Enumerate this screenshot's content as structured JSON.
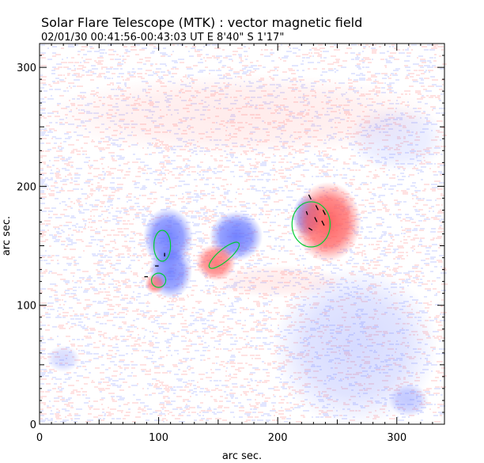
{
  "header": {
    "title": "Solar Flare Telescope (MTK) : vector magnetic field",
    "obs_info": "02/01/30   00:41:56-00:43:03 UT     E 8'40\"   S 1'17\""
  },
  "chart_data": {
    "type": "heatmap",
    "title": "Solar Flare Telescope (MTK) : vector magnetic field",
    "xlabel": "arc sec.",
    "ylabel": "arc sec.",
    "xlim": [
      0,
      340
    ],
    "ylim": [
      0,
      320
    ],
    "x_ticks": [
      0,
      100,
      200,
      300
    ],
    "y_ticks": [
      0,
      100,
      200,
      300
    ],
    "grid": false,
    "colors": {
      "positive_polarity": "#ff5a5a",
      "negative_polarity": "#5a6cff",
      "contour": "#00cc33",
      "vectors": "#000000",
      "frame": "#000000"
    },
    "regions": [
      {
        "polarity": "negative",
        "x": 108,
        "y": 157,
        "rx": 15,
        "ry": 18,
        "strength": 0.85
      },
      {
        "polarity": "negative",
        "x": 110,
        "y": 128,
        "rx": 13,
        "ry": 16,
        "strength": 0.8
      },
      {
        "polarity": "positive",
        "x": 97,
        "y": 118,
        "rx": 6,
        "ry": 6,
        "strength": 0.7
      },
      {
        "polarity": "negative",
        "x": 165,
        "y": 158,
        "rx": 16,
        "ry": 15,
        "strength": 0.85
      },
      {
        "polarity": "positive",
        "x": 148,
        "y": 136,
        "rx": 12,
        "ry": 11,
        "strength": 0.8
      },
      {
        "polarity": "negative",
        "x": 225,
        "y": 175,
        "rx": 9,
        "ry": 13,
        "strength": 0.75
      },
      {
        "polarity": "positive",
        "x": 242,
        "y": 170,
        "rx": 20,
        "ry": 24,
        "strength": 0.95
      },
      {
        "polarity": "negative",
        "x": 265,
        "y": 65,
        "rx": 50,
        "ry": 48,
        "strength": 0.25
      },
      {
        "polarity": "negative",
        "x": 310,
        "y": 20,
        "rx": 12,
        "ry": 10,
        "strength": 0.35
      },
      {
        "polarity": "negative",
        "x": 300,
        "y": 240,
        "rx": 30,
        "ry": 20,
        "strength": 0.15
      },
      {
        "polarity": "negative",
        "x": 20,
        "y": 55,
        "rx": 10,
        "ry": 8,
        "strength": 0.25
      },
      {
        "polarity": "positive",
        "x": 170,
        "y": 260,
        "rx": 120,
        "ry": 25,
        "strength": 0.12
      },
      {
        "polarity": "positive",
        "x": 200,
        "y": 120,
        "rx": 40,
        "ry": 10,
        "strength": 0.12
      }
    ],
    "contours": [
      {
        "x": 103,
        "y": 150,
        "rx": 7,
        "ry": 13,
        "angle": 0
      },
      {
        "x": 100,
        "y": 121,
        "rx": 6,
        "ry": 6,
        "angle": 0
      },
      {
        "x": 155,
        "y": 142,
        "rx": 16,
        "ry": 5,
        "angle": -40
      },
      {
        "x": 228,
        "y": 168,
        "rx": 16,
        "ry": 19,
        "angle": 0
      }
    ],
    "vectors": [
      {
        "x": 228,
        "y": 189,
        "dx": -2,
        "dy": 4
      },
      {
        "x": 234,
        "y": 180,
        "dx": -2,
        "dy": 4
      },
      {
        "x": 240,
        "y": 176,
        "dx": -2,
        "dy": 4
      },
      {
        "x": 233,
        "y": 170,
        "dx": -2,
        "dy": 4
      },
      {
        "x": 239,
        "y": 167,
        "dx": -2,
        "dy": 4
      },
      {
        "x": 229,
        "y": 163,
        "dx": -3,
        "dy": 2
      },
      {
        "x": 105,
        "y": 141,
        "dx": 0,
        "dy": 3
      },
      {
        "x": 100,
        "y": 133,
        "dx": -3,
        "dy": 0
      },
      {
        "x": 91,
        "y": 124,
        "dx": -3,
        "dy": 0
      },
      {
        "x": 225,
        "y": 176,
        "dx": -1,
        "dy": 3
      }
    ]
  }
}
